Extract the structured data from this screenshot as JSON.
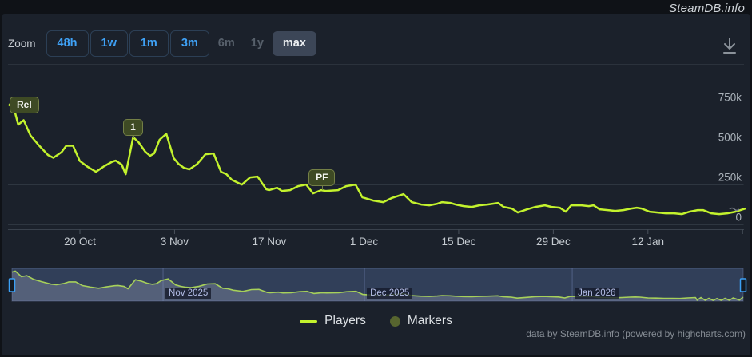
{
  "header": {
    "brand": "SteamDB.info"
  },
  "toolbar": {
    "zoom_label": "Zoom",
    "buttons": [
      {
        "label": "48h",
        "state": "primary"
      },
      {
        "label": "1w",
        "state": "primary"
      },
      {
        "label": "1m",
        "state": "primary"
      },
      {
        "label": "3m",
        "state": "primary"
      },
      {
        "label": "6m",
        "state": "disabled"
      },
      {
        "label": "1y",
        "state": "disabled"
      },
      {
        "label": "max",
        "state": "selected"
      }
    ],
    "download_icon": "download-icon"
  },
  "chart_data": {
    "type": "line",
    "title": "",
    "xlabel": "",
    "ylabel": "",
    "ylim": [
      0,
      800000
    ],
    "grid": true,
    "legend_position": "bottom-center",
    "y_ticks": [
      {
        "label": "750k",
        "value": 750000
      },
      {
        "label": "500k",
        "value": 500000
      },
      {
        "label": "250k",
        "value": 250000
      },
      {
        "label": "0",
        "value": 0
      }
    ],
    "x_ticks": [
      {
        "label": "20 Oct",
        "day": 10.52
      },
      {
        "label": "3 Nov",
        "day": 24.52
      },
      {
        "label": "17 Nov",
        "day": 38.52
      },
      {
        "label": "1 Dec",
        "day": 52.55
      },
      {
        "label": "15 Dec",
        "day": 66.55
      },
      {
        "label": "29 Dec",
        "day": 80.55
      },
      {
        "label": "12 Jan",
        "day": 94.55
      },
      {
        "label": "",
        "day": 108.55
      }
    ],
    "series": [
      {
        "name": "Players",
        "color": "#c3f22d",
        "points": [
          [
            0,
            745000
          ],
          [
            0.5,
            772000
          ],
          [
            1.4,
            627000
          ],
          [
            2.2,
            655000
          ],
          [
            3.2,
            560000
          ],
          [
            4.4,
            500000
          ],
          [
            5.8,
            437000
          ],
          [
            6.6,
            420000
          ],
          [
            7.8,
            455000
          ],
          [
            8.5,
            495000
          ],
          [
            9.5,
            495000
          ],
          [
            10.5,
            400000
          ],
          [
            11.7,
            362000
          ],
          [
            12.9,
            332000
          ],
          [
            14.1,
            367000
          ],
          [
            15.3,
            395000
          ],
          [
            15.8,
            402000
          ],
          [
            16.7,
            377000
          ],
          [
            17.3,
            317000
          ],
          [
            18.4,
            549000
          ],
          [
            19.2,
            517000
          ],
          [
            20.2,
            457000
          ],
          [
            20.9,
            432000
          ],
          [
            21.5,
            447000
          ],
          [
            22.3,
            532000
          ],
          [
            23.3,
            570000
          ],
          [
            24.4,
            417000
          ],
          [
            25.1,
            382000
          ],
          [
            25.9,
            357000
          ],
          [
            26.7,
            347000
          ],
          [
            27.9,
            382000
          ],
          [
            29.1,
            442000
          ],
          [
            30.3,
            447000
          ],
          [
            31.4,
            332000
          ],
          [
            32.2,
            317000
          ],
          [
            33,
            282000
          ],
          [
            34.2,
            257000
          ],
          [
            34.5,
            252000
          ],
          [
            35.7,
            297000
          ],
          [
            36.8,
            302000
          ],
          [
            38.1,
            222000
          ],
          [
            38.5,
            217000
          ],
          [
            39.7,
            232000
          ],
          [
            40.4,
            212000
          ],
          [
            41.6,
            217000
          ],
          [
            42.8,
            242000
          ],
          [
            44,
            252000
          ],
          [
            45,
            197000
          ],
          [
            46.2,
            217000
          ],
          [
            46.9,
            212000
          ],
          [
            48.7,
            217000
          ],
          [
            49.9,
            242000
          ],
          [
            51.3,
            252000
          ],
          [
            52.3,
            172000
          ],
          [
            53.9,
            152000
          ],
          [
            55.4,
            142000
          ],
          [
            56.6,
            167000
          ],
          [
            58.4,
            192000
          ],
          [
            59.6,
            142000
          ],
          [
            61,
            127000
          ],
          [
            62.2,
            122000
          ],
          [
            63.4,
            132000
          ],
          [
            64.1,
            142000
          ],
          [
            65.3,
            137000
          ],
          [
            66.1,
            127000
          ],
          [
            67.3,
            117000
          ],
          [
            68.5,
            112000
          ],
          [
            69.6,
            122000
          ],
          [
            70.8,
            127000
          ],
          [
            72.4,
            137000
          ],
          [
            73.2,
            112000
          ],
          [
            74.4,
            102000
          ],
          [
            75.3,
            77000
          ],
          [
            76.7,
            97000
          ],
          [
            77.9,
            112000
          ],
          [
            79.3,
            122000
          ],
          [
            80.3,
            112000
          ],
          [
            81.5,
            107000
          ],
          [
            82.4,
            82000
          ],
          [
            83.2,
            122000
          ],
          [
            84.7,
            122000
          ],
          [
            85.8,
            117000
          ],
          [
            86.5,
            122000
          ],
          [
            87.4,
            97000
          ],
          [
            88.6,
            92000
          ],
          [
            89.7,
            87000
          ],
          [
            90.9,
            92000
          ],
          [
            92.1,
            102000
          ],
          [
            92.9,
            107000
          ],
          [
            93.6,
            102000
          ],
          [
            94.8,
            82000
          ],
          [
            96,
            77000
          ],
          [
            97.2,
            72000
          ],
          [
            98.4,
            72000
          ],
          [
            99.6,
            67000
          ],
          [
            100.7,
            82000
          ],
          [
            101.9,
            92000
          ],
          [
            102.7,
            92000
          ],
          [
            103.9,
            72000
          ],
          [
            105.1,
            67000
          ],
          [
            106.3,
            72000
          ],
          [
            107.5,
            82000
          ],
          [
            109,
            102000
          ]
        ]
      }
    ],
    "flags": [
      {
        "label": "Rel",
        "day": 0.5,
        "value": 768000,
        "gap": -14
      },
      {
        "label": "1",
        "day": 18.4,
        "value": 545000,
        "gap": 3
      },
      {
        "label": "PF",
        "day": 46.3,
        "value": 217000,
        "gap": 5
      }
    ],
    "legend": [
      {
        "label": "Players",
        "marker": "line",
        "color": "#c3f22d"
      },
      {
        "label": "Markers",
        "marker": "circle",
        "color": "#57652f"
      }
    ],
    "navigator": {
      "month_lines": [
        {
          "label": "Nov 2025",
          "day": 22.52
        },
        {
          "label": "Dec 2025",
          "day": 52.55
        },
        {
          "label": "Jan 2026",
          "day": 83.52
        }
      ]
    }
  },
  "footer": {
    "credits": "data by SteamDB.info (powered by highcharts.com)"
  },
  "colors": {
    "line": "#c3f22d",
    "flag_bg": "#3e4a24",
    "flag_border": "#737f46",
    "grid": "#2e3640",
    "axis": "#39414c",
    "mask": "rgba(102,133,194,0.3)",
    "handle": "#3ba0f5",
    "panel": "#1b212b",
    "strip": "#0f1217"
  }
}
